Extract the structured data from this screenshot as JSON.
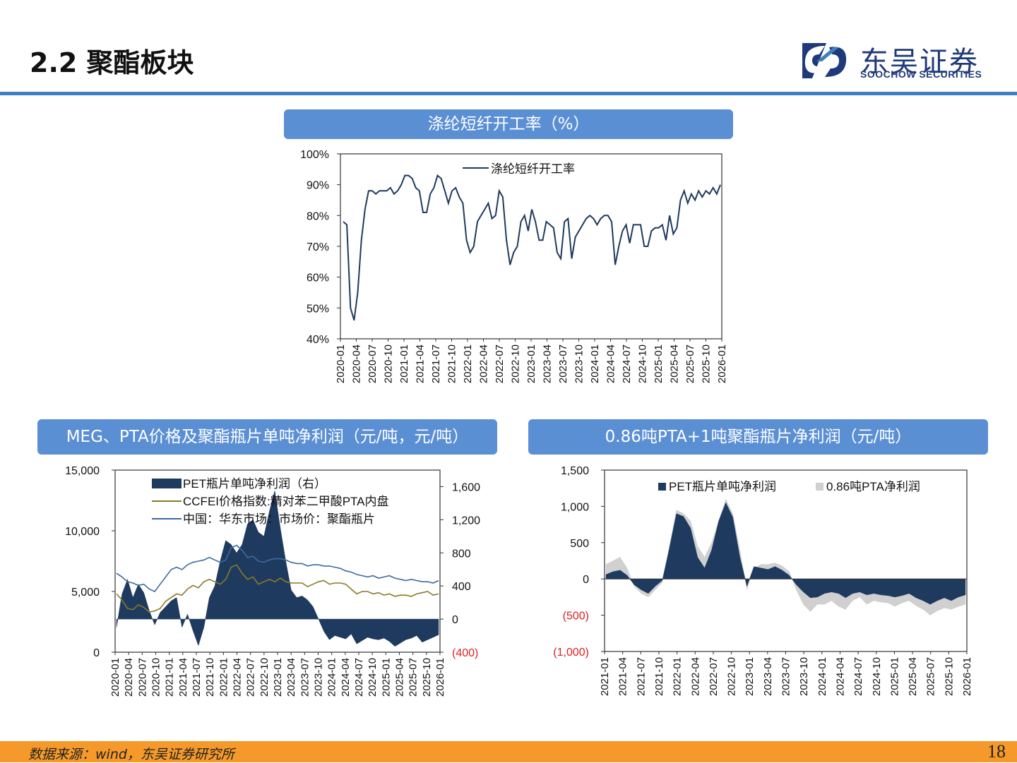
{
  "header": {
    "title": "2.2 聚酯板块",
    "logo_cn": "东吴证券",
    "logo_en": "SOOCHOW SECURITIES",
    "accent": "#3e7fc2",
    "logo_color": "#1f3a7a"
  },
  "footer": {
    "source": "数据来源：wind，东吴证券研究所",
    "page_number": "18",
    "color": "#f59a2a"
  },
  "chart_data": [
    {
      "id": "fiber",
      "type": "line",
      "panel_title": "涤纶短纤开工率（%）",
      "ylim": [
        40,
        100
      ],
      "yticks": [
        "40%",
        "50%",
        "60%",
        "70%",
        "80%",
        "90%",
        "100%"
      ],
      "ytick_values": [
        40,
        50,
        60,
        70,
        80,
        90,
        100
      ],
      "xticks": [
        "2020-01",
        "2020-04",
        "2020-07",
        "2020-10",
        "2021-01",
        "2021-04",
        "2021-07",
        "2021-10",
        "2022-01",
        "2022-04",
        "2022-07",
        "2022-10",
        "2023-01",
        "2023-04",
        "2023-07",
        "2023-10",
        "2024-01",
        "2024-04",
        "2024-07",
        "2024-10",
        "2025-01",
        "2025-04",
        "2025-07",
        "2025-10",
        "2026-01"
      ],
      "legend": [
        "涤纶短纤开工率"
      ],
      "series": [
        {
          "name": "涤纶短纤开工率",
          "color": "#1f3a5f",
          "values": [
            78,
            77,
            50,
            46,
            55,
            72,
            82,
            88,
            88,
            87,
            88,
            88,
            88,
            89,
            87,
            88,
            90,
            93,
            93,
            92,
            89,
            88,
            81,
            81,
            87,
            89,
            93,
            92,
            88,
            84,
            88,
            89,
            86,
            84,
            72,
            68,
            70,
            78,
            80,
            82,
            84,
            79,
            80,
            88,
            86,
            72,
            64,
            68,
            70,
            78,
            80,
            75,
            82,
            78,
            72,
            72,
            78,
            77,
            76,
            68,
            66,
            78,
            79,
            66,
            73,
            75,
            77,
            79,
            80,
            79,
            77,
            79,
            80,
            80,
            78,
            64,
            70,
            75,
            77,
            71,
            77,
            77,
            77,
            70,
            70,
            75,
            76,
            76,
            77,
            72,
            80,
            74,
            76,
            85,
            88,
            84,
            87,
            85,
            88,
            86,
            88,
            87,
            89,
            87,
            90
          ]
        }
      ]
    },
    {
      "id": "meg_pta",
      "type": "line+area",
      "panel_title": "MEG、PTA价格及聚酯瓶片单吨净利润（元/吨，元/吨）",
      "ylim_left": [
        0,
        15000
      ],
      "ylim_right": [
        -400,
        1800
      ],
      "yticks_left": [
        "0",
        "5,000",
        "10,000",
        "15,000"
      ],
      "ytick_values_left": [
        0,
        5000,
        10000,
        15000
      ],
      "yticks_right": [
        "(400)",
        "0",
        "400",
        "800",
        "1,200",
        "1,600"
      ],
      "ytick_values_right": [
        -400,
        0,
        400,
        800,
        1200,
        1600
      ],
      "right_negative_color": "#e02020",
      "xticks": [
        "2020-01",
        "2020-04",
        "2020-07",
        "2020-10",
        "2021-01",
        "2021-04",
        "2021-07",
        "2021-10",
        "2022-01",
        "2022-04",
        "2022-07",
        "2022-10",
        "2023-01",
        "2023-04",
        "2023-07",
        "2023-10",
        "2024-01",
        "2024-04",
        "2024-07",
        "2024-10",
        "2025-01",
        "2025-04",
        "2025-07",
        "2025-10",
        "2026-01"
      ],
      "legend": [
        "PET瓶片单吨净利润（右）",
        "CCFEI价格指数:精对苯二甲酸PTA内盘",
        "中国：华东市场：市场价：聚酯瓶片"
      ],
      "series": [
        {
          "name": "PET瓶片单吨净利润（右）",
          "kind": "area",
          "axis": "right",
          "color": "#1f3a5f",
          "values": [
            -100,
            300,
            480,
            260,
            420,
            320,
            100,
            -70,
            80,
            150,
            220,
            260,
            -100,
            60,
            -140,
            -320,
            -100,
            260,
            400,
            700,
            950,
            900,
            800,
            900,
            1150,
            1200,
            1050,
            1000,
            1300,
            1550,
            1100,
            700,
            350,
            260,
            280,
            230,
            150,
            0,
            -150,
            -250,
            -200,
            -220,
            -240,
            -180,
            -300,
            -260,
            -220,
            -240,
            -250,
            -230,
            -270,
            -330,
            -290,
            -250,
            -230,
            -200,
            -280,
            -250,
            -220,
            -190
          ]
        },
        {
          "name": "CCFEI价格指数:精对苯二甲酸PTA内盘",
          "kind": "line",
          "axis": "left",
          "color": "#8a7a2a",
          "values": [
            4800,
            4300,
            3600,
            3500,
            3900,
            3700,
            3300,
            3400,
            3600,
            4200,
            4500,
            4800,
            4700,
            5200,
            5500,
            5300,
            5800,
            6000,
            5800,
            5600,
            6000,
            7000,
            7200,
            6500,
            6000,
            6200,
            5600,
            5800,
            6000,
            5800,
            6100,
            5800,
            5700,
            5700,
            5700,
            5400,
            5600,
            5800,
            5900,
            5600,
            5700,
            5700,
            5600,
            5200,
            4800,
            5000,
            5000,
            4800,
            4900,
            4700,
            4800,
            4600,
            4700,
            4700,
            4600,
            4800,
            4900,
            5000,
            4700,
            4800
          ]
        },
        {
          "name": "中国：华东市场：市场价：聚酯瓶片",
          "kind": "line",
          "axis": "left",
          "color": "#3d6aa4",
          "values": [
            6500,
            6200,
            5800,
            5700,
            5500,
            5600,
            5200,
            5000,
            5600,
            6200,
            6800,
            7000,
            6800,
            7200,
            7400,
            7500,
            7600,
            7800,
            7600,
            7400,
            7600,
            8600,
            8800,
            8400,
            7800,
            7900,
            7500,
            7400,
            7600,
            7700,
            7700,
            7600,
            7400,
            7300,
            7300,
            7100,
            7200,
            7200,
            7100,
            7100,
            7000,
            6900,
            6700,
            6600,
            6400,
            6300,
            6200,
            6300,
            6100,
            6200,
            6300,
            6100,
            6000,
            5900,
            6000,
            5900,
            5800,
            5800,
            5700,
            5900
          ]
        }
      ]
    },
    {
      "id": "pet_pta",
      "type": "area",
      "panel_title": "0.86吨PTA+1吨聚酯瓶片净利润（元/吨）",
      "ylim": [
        -1000,
        1500
      ],
      "yticks": [
        "(1,000)",
        "(500)",
        "0",
        "500",
        "1,000",
        "1,500"
      ],
      "ytick_values": [
        -1000,
        -500,
        0,
        500,
        1000,
        1500
      ],
      "negative_tick_color": "#e02020",
      "xticks": [
        "2021-01",
        "2021-04",
        "2021-07",
        "2021-10",
        "2022-01",
        "2022-04",
        "2022-07",
        "2022-10",
        "2023-01",
        "2023-04",
        "2023-07",
        "2023-10",
        "2024-01",
        "2024-04",
        "2024-07",
        "2024-10",
        "2025-01",
        "2025-04",
        "2025-07",
        "2025-10",
        "2026-01"
      ],
      "legend": [
        "PET瓶片单吨净利润",
        "0.86吨PTA净利润"
      ],
      "series": [
        {
          "name": "0.86吨PTA净利润",
          "kind": "area",
          "color": "#d0d0d0",
          "values": [
            200,
            250,
            300,
            150,
            -100,
            -200,
            -250,
            -150,
            -50,
            450,
            950,
            900,
            800,
            450,
            300,
            500,
            800,
            1100,
            900,
            400,
            -150,
            150,
            200,
            200,
            220,
            180,
            100,
            -150,
            -350,
            -450,
            -350,
            -350,
            -300,
            -380,
            -420,
            -300,
            -250,
            -350,
            -300,
            -320,
            -330,
            -380,
            -330,
            -300,
            -370,
            -420,
            -500,
            -440,
            -400,
            -420,
            -380,
            -350
          ]
        },
        {
          "name": "PET瓶片单吨净利润",
          "kind": "area",
          "color": "#1f3a5f",
          "values": [
            60,
            100,
            120,
            50,
            -80,
            -150,
            -200,
            -100,
            -20,
            420,
            900,
            860,
            700,
            300,
            150,
            400,
            800,
            1050,
            850,
            300,
            -100,
            170,
            150,
            130,
            170,
            120,
            50,
            -80,
            -180,
            -260,
            -250,
            -200,
            -180,
            -200,
            -260,
            -200,
            -180,
            -220,
            -200,
            -220,
            -230,
            -250,
            -230,
            -200,
            -260,
            -300,
            -350,
            -300,
            -260,
            -300,
            -250,
            -220
          ]
        }
      ]
    }
  ]
}
